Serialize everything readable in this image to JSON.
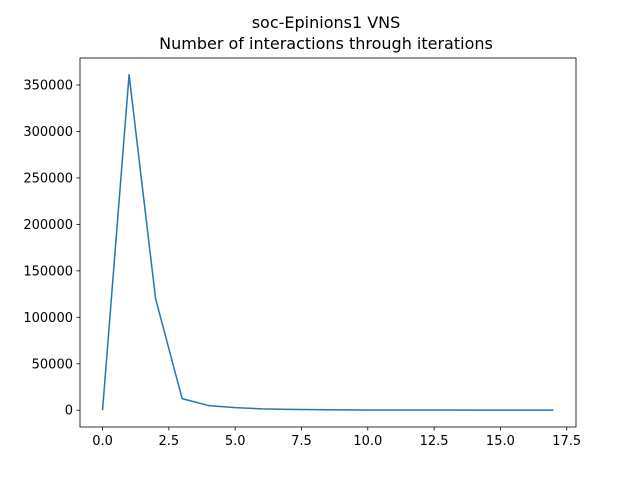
{
  "chart_data": {
    "type": "line",
    "title": "soc-Epinions1 VNS",
    "subtitle": "Number of interactions through iterations",
    "xlabel": "",
    "ylabel": "",
    "x": [
      0,
      1,
      2,
      3,
      4,
      5,
      6,
      7,
      8,
      9,
      10,
      11,
      12,
      13,
      14,
      15,
      16,
      17
    ],
    "series": [
      {
        "color": "#1f77b4",
        "values": [
          0,
          361000,
          120000,
          12500,
          5000,
          2800,
          1500,
          900,
          600,
          400,
          300,
          250,
          200,
          180,
          150,
          130,
          120,
          100
        ]
      }
    ],
    "xlim": [
      -0.85,
      17.85
    ],
    "ylim": [
      -18050,
      379050
    ],
    "xticks": [
      0,
      2.5,
      5,
      7.5,
      10,
      12.5,
      15,
      17.5
    ],
    "xtick_labels": [
      "0.0",
      "2.5",
      "5.0",
      "7.5",
      "10.0",
      "12.5",
      "15.0",
      "17.5"
    ],
    "yticks": [
      0,
      50000,
      100000,
      150000,
      200000,
      250000,
      300000,
      350000
    ],
    "ytick_labels": [
      "0",
      "50000",
      "100000",
      "150000",
      "200000",
      "250000",
      "300000",
      "350000"
    ],
    "grid": false,
    "legend": "none"
  }
}
